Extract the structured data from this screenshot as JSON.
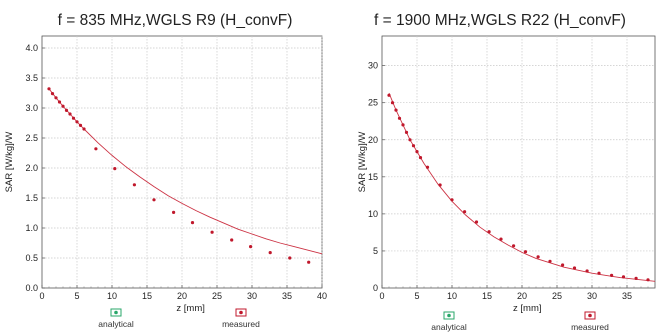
{
  "chart_data": [
    {
      "type": "line",
      "title": "f = 835 MHz,WGLS R9 (H_convF)",
      "xlabel": "z [mm]",
      "ylabel": "SAR [W/kg]/W",
      "xlim": [
        0,
        40
      ],
      "ylim": [
        0,
        4.2
      ],
      "xticks": [
        0,
        5,
        10,
        15,
        20,
        25,
        30,
        35,
        40
      ],
      "yticks": [
        0.0,
        0.5,
        1.0,
        1.5,
        2.0,
        2.5,
        3.0,
        3.5,
        4.0
      ],
      "ytick_labels": [
        "0.0",
        "0.5",
        "1.0",
        "1.5",
        "2.0",
        "2.5",
        "3.0",
        "3.5",
        "4.0"
      ],
      "grid": true,
      "legend": {
        "placement": "bottom",
        "entries": [
          "analytical",
          "measured"
        ]
      },
      "series": [
        {
          "name": "analytical",
          "color": "#cc3344",
          "x": [
            1,
            2,
            3,
            4,
            5,
            6,
            8,
            10,
            12,
            14,
            16,
            18,
            20,
            22,
            24,
            26,
            28,
            30,
            32,
            34,
            36,
            38,
            40
          ],
          "y": [
            3.32,
            3.17,
            3.03,
            2.9,
            2.77,
            2.65,
            2.42,
            2.21,
            2.02,
            1.85,
            1.69,
            1.54,
            1.41,
            1.29,
            1.18,
            1.08,
            0.98,
            0.9,
            0.82,
            0.75,
            0.69,
            0.63,
            0.57
          ]
        },
        {
          "name": "measured",
          "color": "#c0182c",
          "x": [
            1,
            1.5,
            2,
            2.5,
            3,
            3.5,
            4,
            4.5,
            5,
            5.5,
            6,
            7.7,
            10.4,
            13.2,
            16.0,
            18.8,
            21.5,
            24.3,
            27.1,
            29.8,
            32.6,
            35.4,
            38.1
          ],
          "y": [
            3.32,
            3.24,
            3.17,
            3.1,
            3.03,
            2.96,
            2.9,
            2.83,
            2.77,
            2.71,
            2.65,
            2.32,
            1.99,
            1.72,
            1.47,
            1.26,
            1.09,
            0.93,
            0.8,
            0.69,
            0.59,
            0.5,
            0.43
          ]
        }
      ]
    },
    {
      "type": "line",
      "title": "f = 1900 MHz,WGLS R22 (H_convF)",
      "xlabel": "z [mm]",
      "ylabel": "SAR [W/kg]/W",
      "xlim": [
        0,
        39
      ],
      "ylim": [
        0,
        34
      ],
      "xticks": [
        0,
        5,
        10,
        15,
        20,
        25,
        30,
        35
      ],
      "yticks": [
        0,
        5,
        10,
        15,
        20,
        25,
        30
      ],
      "ytick_labels": [
        "0",
        "5",
        "10",
        "15",
        "20",
        "25",
        "30"
      ],
      "grid": true,
      "legend": {
        "placement": "bottom",
        "entries": [
          "analytical",
          "measured"
        ]
      },
      "series": [
        {
          "name": "analytical",
          "color": "#cc3344",
          "x": [
            1,
            2,
            3,
            4,
            5,
            6,
            8,
            10,
            12,
            14,
            16,
            18,
            20,
            22,
            24,
            26,
            28,
            30,
            32,
            34,
            36,
            39
          ],
          "y": [
            26.3,
            24.0,
            22.0,
            20.0,
            18.4,
            16.8,
            14.0,
            11.7,
            9.8,
            8.2,
            6.9,
            5.8,
            4.8,
            4.0,
            3.4,
            2.8,
            2.4,
            2.0,
            1.7,
            1.4,
            1.2,
            0.9
          ]
        },
        {
          "name": "measured",
          "color": "#c0182c",
          "x": [
            1,
            1.5,
            2,
            2.5,
            3,
            3.5,
            4,
            4.5,
            5,
            5.5,
            6.5,
            8.3,
            10.0,
            11.8,
            13.5,
            15.3,
            17.0,
            18.8,
            20.5,
            22.3,
            24.0,
            25.8,
            27.5,
            29.3,
            31.0,
            32.8,
            34.5,
            36.3,
            38.0
          ],
          "y": [
            26.0,
            25.0,
            24.0,
            22.9,
            22.0,
            21.0,
            20.0,
            19.2,
            18.4,
            17.6,
            16.3,
            13.9,
            11.9,
            10.3,
            8.9,
            7.6,
            6.6,
            5.7,
            4.9,
            4.2,
            3.6,
            3.1,
            2.7,
            2.3,
            2.0,
            1.7,
            1.5,
            1.3,
            1.1
          ]
        }
      ]
    }
  ]
}
